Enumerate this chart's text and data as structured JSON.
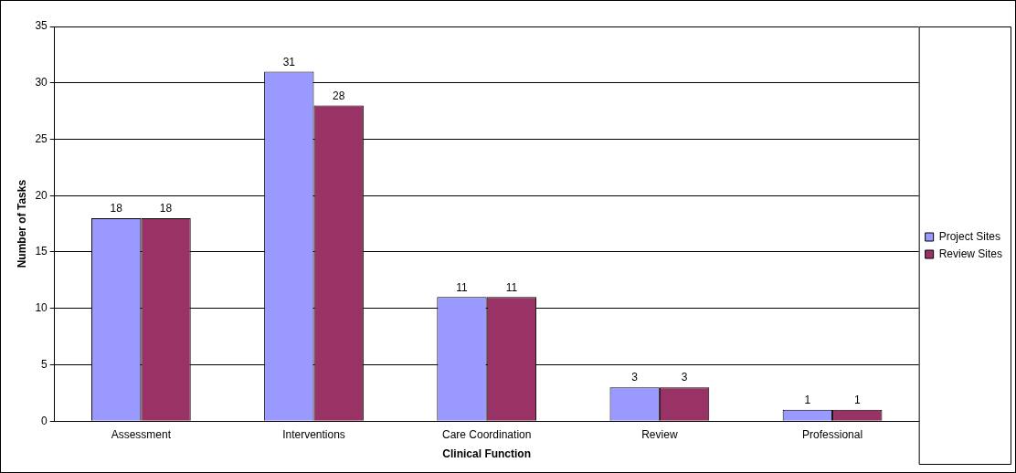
{
  "chart_data": {
    "type": "bar",
    "xlabel": "Clinical Function",
    "ylabel": "Number of Tasks",
    "categories": [
      "Assessment",
      "Interventions",
      "Care Coordination",
      "Review",
      "Professional"
    ],
    "series": [
      {
        "name": "Project Sites",
        "color": "#9999ff",
        "values": [
          18,
          31,
          11,
          3,
          1
        ]
      },
      {
        "name": "Review Sites",
        "color": "#993366",
        "values": [
          18,
          28,
          11,
          3,
          1
        ]
      }
    ],
    "ylim": [
      0,
      35
    ],
    "yticks": [
      0,
      5,
      10,
      15,
      20,
      25,
      30,
      35
    ],
    "grid": "y",
    "legend": "right",
    "data_labels": true
  }
}
